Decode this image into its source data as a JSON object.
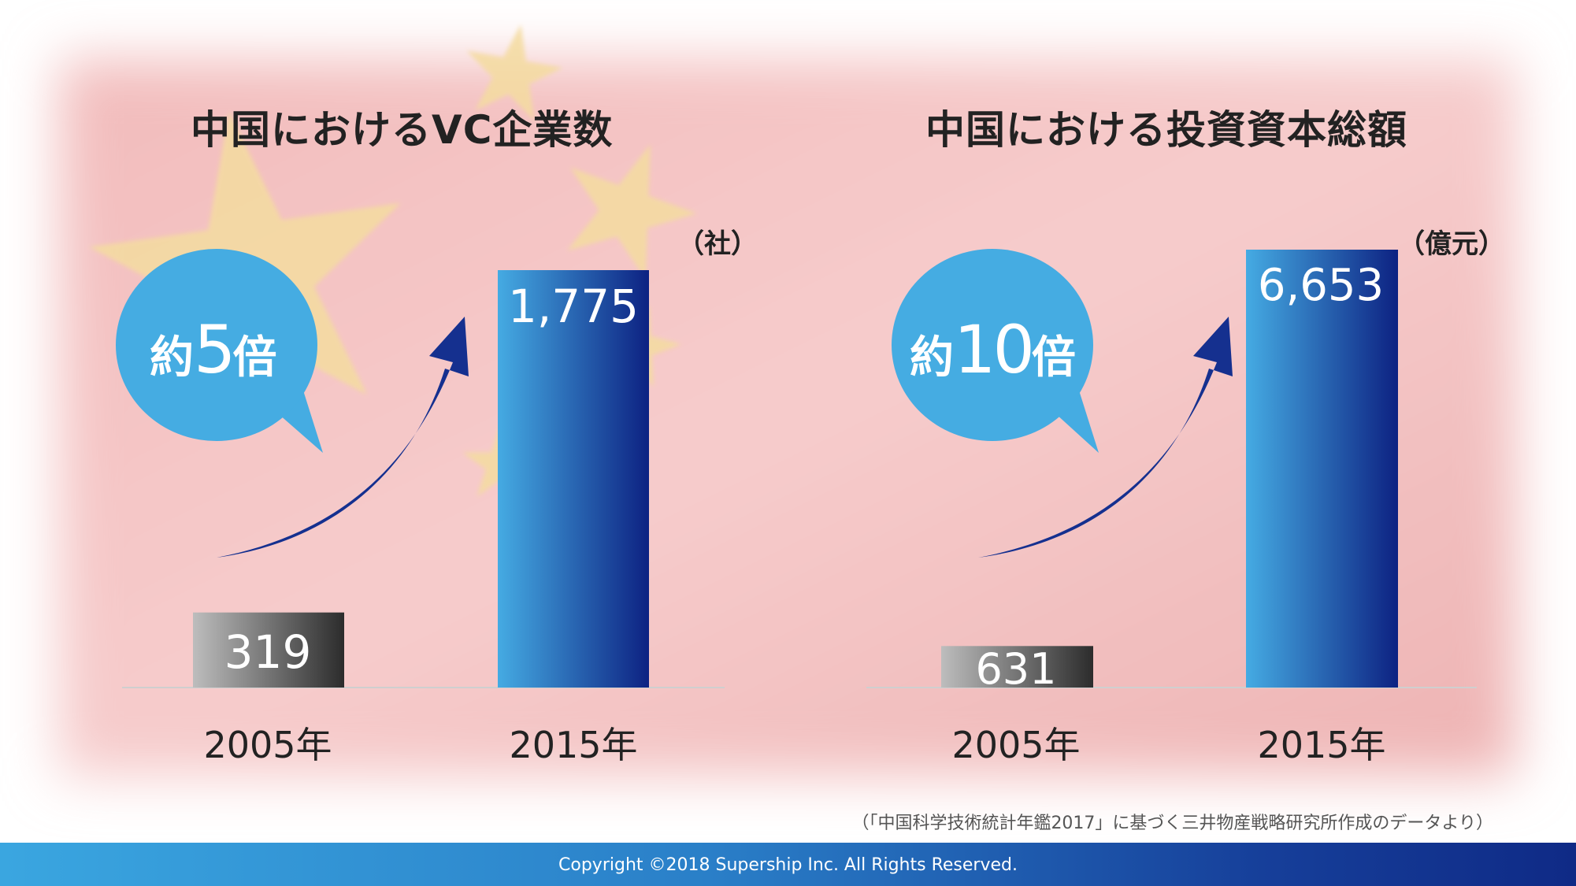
{
  "colors": {
    "bubble": "#45ace2",
    "arrow": "#15308f",
    "bar_2015_from": "#45abe3",
    "bar_2015_to": "#0d2282",
    "bar_2005_from": "#bdbdbd",
    "bar_2005_to": "#2c2c2c",
    "flag_red": "#e9a6a6",
    "flag_star": "#f4dca0",
    "footer": "#1b4ea7"
  },
  "chart_data": [
    {
      "type": "bar",
      "title": "中国におけるVC企業数",
      "unit": "（社）",
      "categories": [
        "2005年",
        "2015年"
      ],
      "values": [
        319,
        1775
      ],
      "value_labels": [
        "319",
        "1,775"
      ],
      "callout": {
        "prefix": "約",
        "number": "5",
        "suffix": "倍"
      }
    },
    {
      "type": "bar",
      "title": "中国における投資資本総額",
      "unit": "（億元）",
      "categories": [
        "2005年",
        "2015年"
      ],
      "values": [
        631,
        6653
      ],
      "value_labels": [
        "631",
        "6,653"
      ],
      "callout": {
        "prefix": "約",
        "number": "10",
        "suffix": "倍"
      }
    }
  ],
  "source_note": "（「中国科学技術統計年鑑2017」に基づく三井物産戦略研究所作成のデータより）",
  "footer": {
    "copyright": "Copyright ©2018  Supership Inc. All Rights Reserved."
  }
}
